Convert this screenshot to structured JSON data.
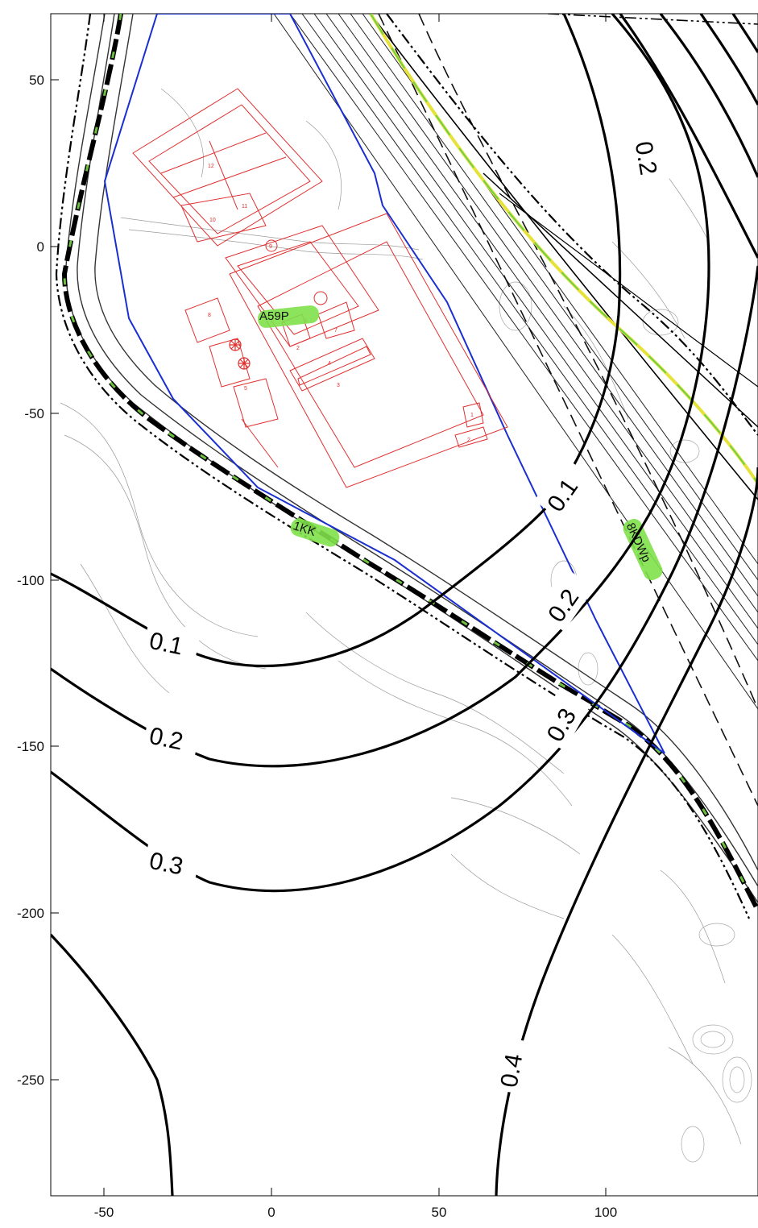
{
  "map": {
    "x_axis": {
      "ticks": [
        -50,
        0,
        50,
        100
      ]
    },
    "y_axis": {
      "ticks": [
        50,
        0,
        -50,
        -100,
        -150,
        -200,
        -250
      ]
    },
    "contours": [
      {
        "label": "0.1",
        "value": 0.1
      },
      {
        "label": "0.2",
        "value": 0.2
      },
      {
        "label": "0.3",
        "value": 0.3
      },
      {
        "label": "0.4",
        "value": 0.4
      }
    ],
    "site_markers": [
      {
        "label": "A59P"
      },
      {
        "label": "1KK"
      },
      {
        "label": "8KDWp"
      }
    ],
    "plan_numbers": [
      "12",
      "11",
      "10",
      "9",
      "8",
      "7",
      "6",
      "5",
      "4",
      "3",
      "2",
      "1",
      "1",
      "2"
    ],
    "colors": {
      "contour": "#000000",
      "site_boundary": "#1a2fd0",
      "building_plan": "#e03030",
      "highlight": "#7fe04a",
      "base_map": "#555555"
    }
  }
}
